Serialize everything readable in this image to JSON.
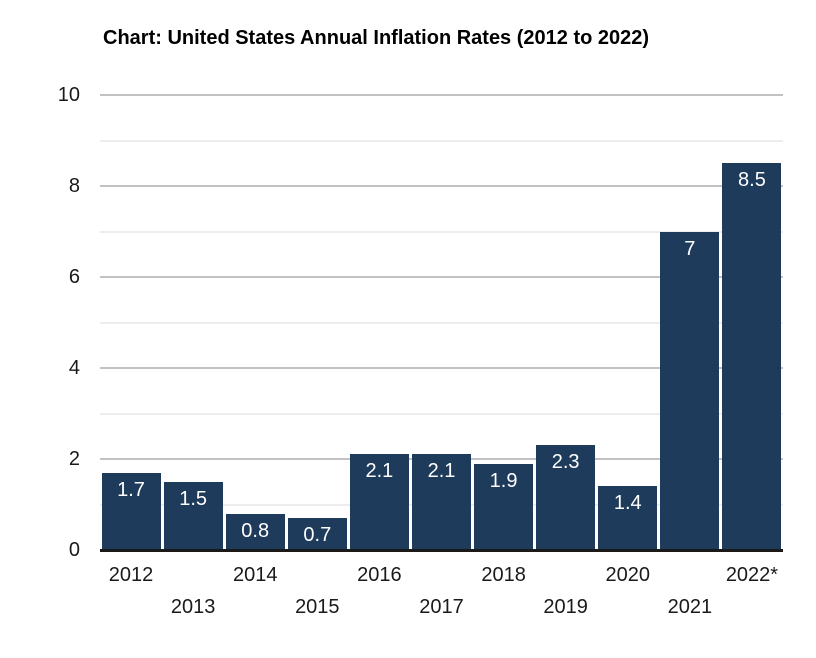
{
  "chart_data": {
    "type": "bar",
    "title": "Chart: United States Annual Inflation Rates (2012 to 2022)",
    "categories": [
      "2012",
      "2013",
      "2014",
      "2015",
      "2016",
      "2017",
      "2018",
      "2019",
      "2020",
      "2021",
      "2022*"
    ],
    "values": [
      1.7,
      1.5,
      0.8,
      0.7,
      2.1,
      2.1,
      1.9,
      2.3,
      1.4,
      7,
      8.5
    ],
    "value_labels": [
      "1.7",
      "1.5",
      "0.8",
      "0.7",
      "2.1",
      "2.1",
      "1.9",
      "2.3",
      "1.4",
      "7",
      "8.5"
    ],
    "xlabel": "",
    "ylabel": "",
    "ylim": [
      0,
      10
    ],
    "yticks": [
      0,
      2,
      4,
      6,
      8,
      10
    ],
    "minor_gridlines": [
      1,
      3,
      5,
      7,
      9
    ],
    "grid": "horizontal",
    "legend": "none",
    "colors": {
      "bar": "#1e3b5c",
      "value_label": "#ffffff",
      "major_gridline": "#c2c2c2",
      "minor_gridline": "#ededed",
      "axis_line": "#1a1a1a",
      "title_text": "#000000",
      "tick_text": "#1a1a1a",
      "background": "#ffffff"
    }
  }
}
